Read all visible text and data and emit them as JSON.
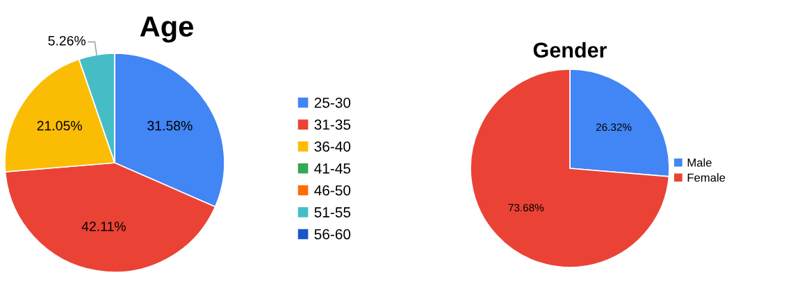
{
  "chart_data": [
    {
      "type": "pie",
      "title": "Age",
      "categories": [
        "25-30",
        "31-35",
        "36-40",
        "41-45",
        "46-50",
        "51-55",
        "56-60"
      ],
      "values": [
        31.58,
        42.11,
        21.05,
        0,
        0,
        5.26,
        0
      ],
      "colors": [
        "#4285f4",
        "#ea4335",
        "#fbbc04",
        "#34a853",
        "#ff6d01",
        "#46bdc6",
        "#1a56c8"
      ],
      "value_labels": [
        "31.58%",
        "42.11%",
        "21.05%",
        null,
        null,
        "5.26%",
        null
      ],
      "legend": "right"
    },
    {
      "type": "pie",
      "title": "Gender",
      "categories": [
        "Male",
        "Female"
      ],
      "values": [
        26.32,
        73.68
      ],
      "colors": [
        "#4285f4",
        "#ea4335"
      ],
      "value_labels": [
        "26.32%",
        "73.68%"
      ],
      "legend": "right"
    }
  ]
}
